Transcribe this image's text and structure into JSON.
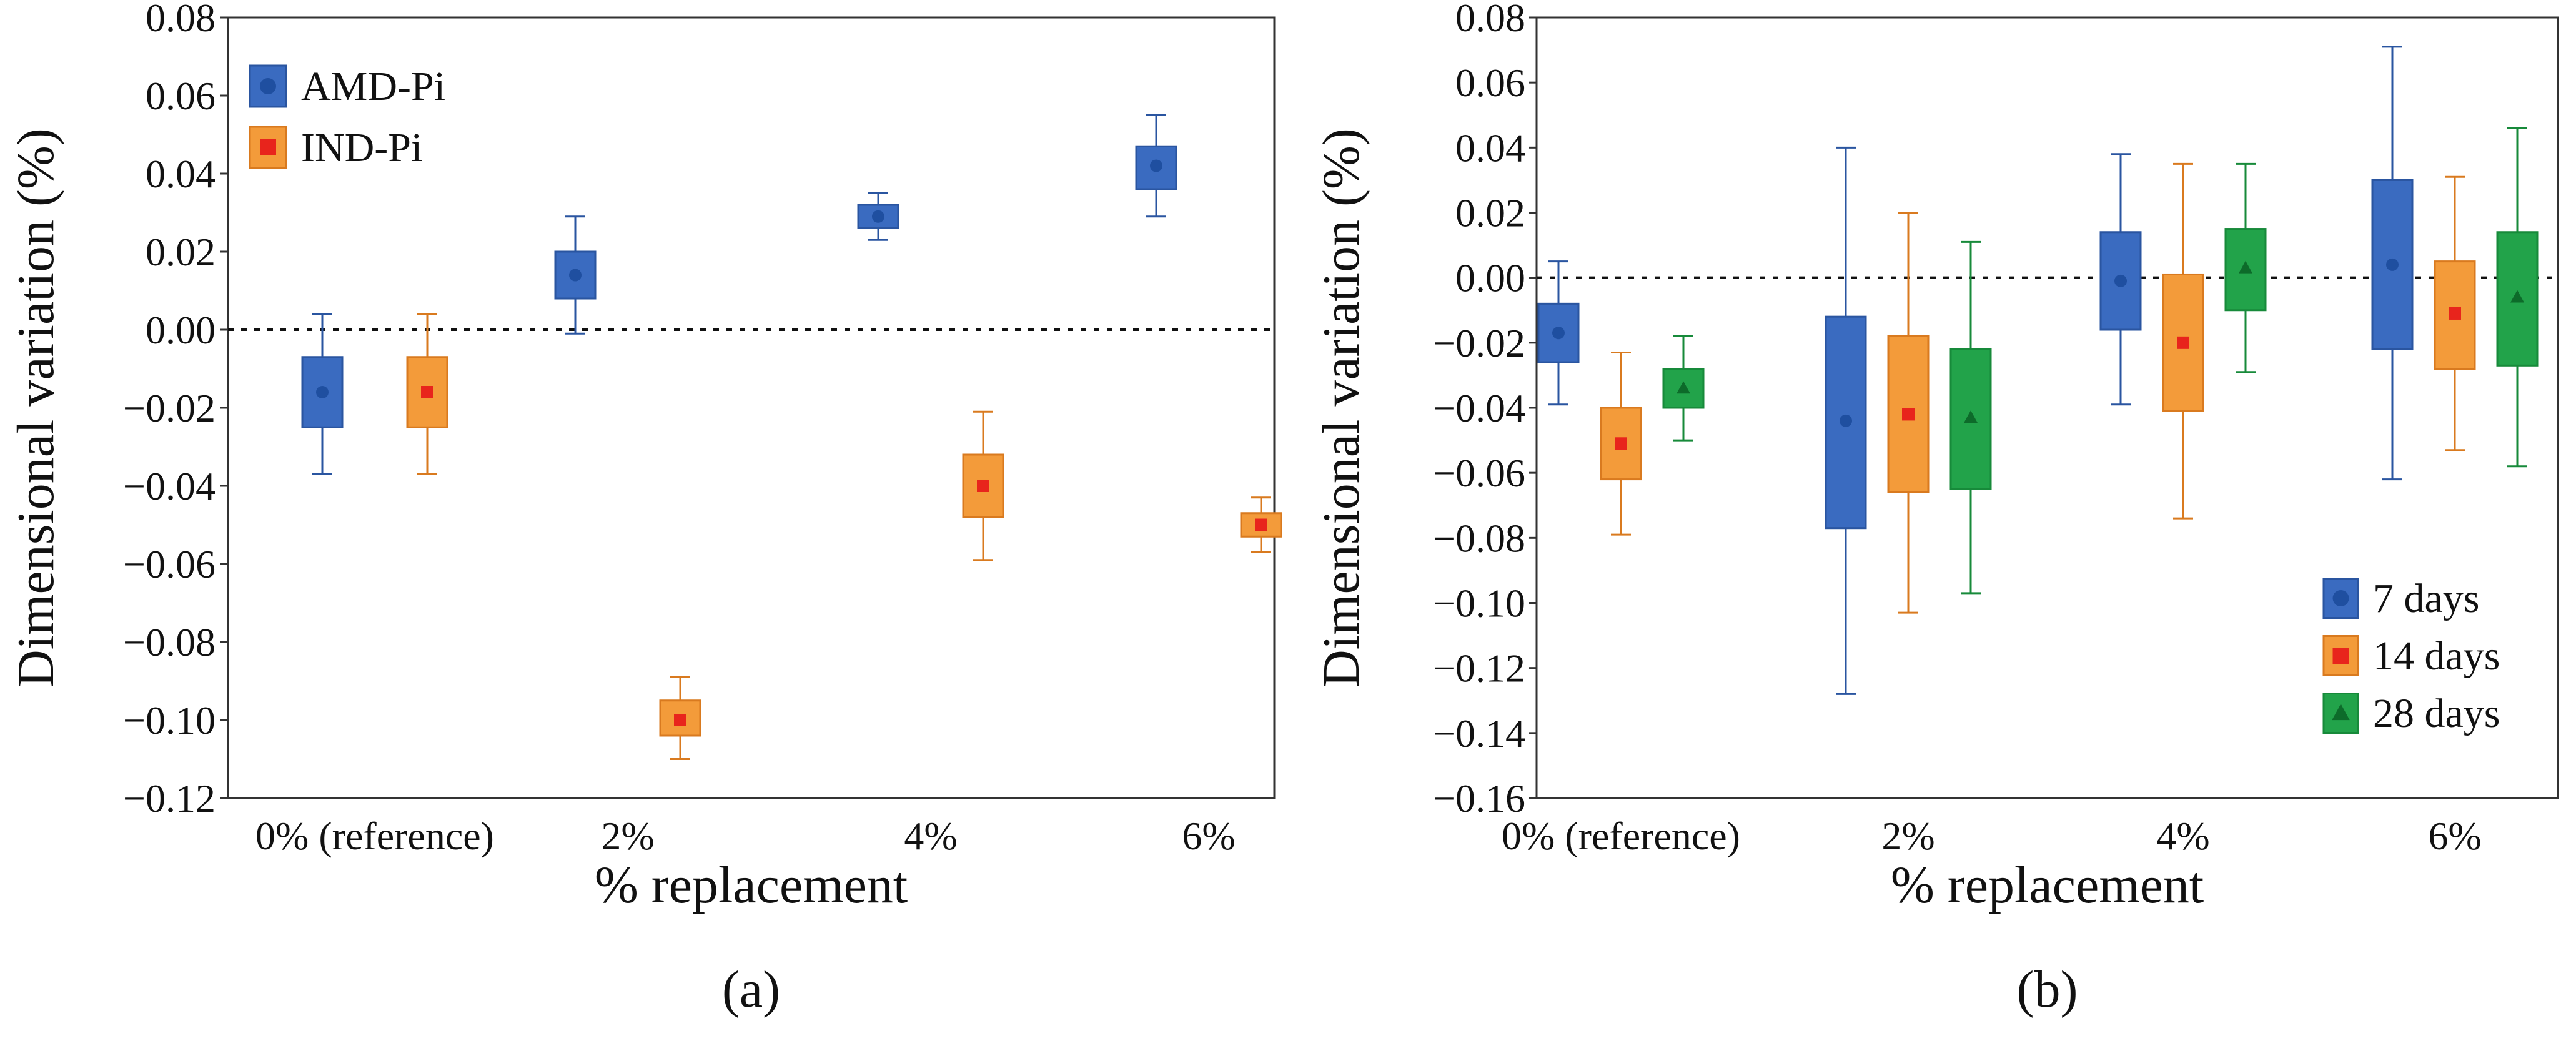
{
  "chart_data": [
    {
      "type": "box",
      "panel_label": "(a)",
      "xlabel": "% replacement",
      "ylabel": "Dimensional variation (%)",
      "categories": [
        "0% (reference)",
        "2%",
        "4%",
        "6%"
      ],
      "ylim": [
        -0.12,
        0.08
      ],
      "yticks": [
        "0.08",
        "0.06",
        "0.04",
        "0.02",
        "0.00",
        "−0.02",
        "−0.04",
        "−0.06",
        "−0.08",
        "−0.10",
        "−0.12"
      ],
      "reference_line": 0.0,
      "legend": {
        "placement": "top-left",
        "entries": [
          "AMD-Pi",
          "IND-Pi"
        ]
      },
      "series": [
        {
          "name": "AMD-Pi",
          "color": "#3a6bc0",
          "edge": "#2a55a0",
          "marker": "circle",
          "marker_color": "#1f4fa0",
          "boxes": [
            {
              "category": "0% (reference)",
              "whisker_low": -0.037,
              "q1": -0.025,
              "median": -0.016,
              "q3": -0.007,
              "whisker_high": 0.004
            },
            {
              "category": "2%",
              "whisker_low": -0.001,
              "q1": 0.008,
              "median": 0.014,
              "q3": 0.02,
              "whisker_high": 0.029
            },
            {
              "category": "4%",
              "whisker_low": 0.023,
              "q1": 0.026,
              "median": 0.029,
              "q3": 0.032,
              "whisker_high": 0.035
            },
            {
              "category": "6%",
              "whisker_low": 0.029,
              "q1": 0.036,
              "median": 0.042,
              "q3": 0.047,
              "whisker_high": 0.055
            }
          ]
        },
        {
          "name": "IND-Pi",
          "color": "#f39b3a",
          "edge": "#d97a1f",
          "marker": "square",
          "marker_color": "#e8241c",
          "boxes": [
            {
              "category": "0% (reference)",
              "whisker_low": -0.037,
              "q1": -0.025,
              "median": -0.016,
              "q3": -0.007,
              "whisker_high": 0.004
            },
            {
              "category": "2%",
              "whisker_low": -0.11,
              "q1": -0.104,
              "median": -0.1,
              "q3": -0.095,
              "whisker_high": -0.089
            },
            {
              "category": "4%",
              "whisker_low": -0.059,
              "q1": -0.048,
              "median": -0.04,
              "q3": -0.032,
              "whisker_high": -0.021
            },
            {
              "category": "6%",
              "whisker_low": -0.057,
              "q1": -0.053,
              "median": -0.05,
              "q3": -0.047,
              "whisker_high": -0.043
            }
          ]
        }
      ]
    },
    {
      "type": "box",
      "panel_label": "(b)",
      "xlabel": "% replacement",
      "ylabel": "Dimensional variation (%)",
      "categories": [
        "0% (reference)",
        "2%",
        "4%",
        "6%"
      ],
      "ylim": [
        -0.16,
        0.08
      ],
      "yticks": [
        "0.08",
        "0.06",
        "0.04",
        "0.02",
        "0.00",
        "−0.02",
        "−0.04",
        "−0.06",
        "−0.08",
        "−0.10",
        "−0.12",
        "−0.14",
        "−0.16"
      ],
      "reference_line": 0.0,
      "legend": {
        "placement": "bottom-right",
        "entries": [
          "7 days",
          "14 days",
          "28 days"
        ]
      },
      "series": [
        {
          "name": "7 days",
          "color": "#3a6bc0",
          "edge": "#2a55a0",
          "marker": "circle",
          "marker_color": "#1f4fa0",
          "boxes": [
            {
              "category": "0% (reference)",
              "whisker_low": -0.039,
              "q1": -0.026,
              "median": -0.017,
              "q3": -0.008,
              "whisker_high": 0.005
            },
            {
              "category": "2%",
              "whisker_low": -0.128,
              "q1": -0.077,
              "median": -0.044,
              "q3": -0.012,
              "whisker_high": 0.04
            },
            {
              "category": "4%",
              "whisker_low": -0.039,
              "q1": -0.016,
              "median": -0.001,
              "q3": 0.014,
              "whisker_high": 0.038
            },
            {
              "category": "6%",
              "whisker_low": -0.062,
              "q1": -0.022,
              "median": 0.004,
              "q3": 0.03,
              "whisker_high": 0.071
            }
          ]
        },
        {
          "name": "14 days",
          "color": "#f39b3a",
          "edge": "#d97a1f",
          "marker": "square",
          "marker_color": "#e8241c",
          "boxes": [
            {
              "category": "0% (reference)",
              "whisker_low": -0.079,
              "q1": -0.062,
              "median": -0.051,
              "q3": -0.04,
              "whisker_high": -0.023
            },
            {
              "category": "2%",
              "whisker_low": -0.103,
              "q1": -0.066,
              "median": -0.042,
              "q3": -0.018,
              "whisker_high": 0.02
            },
            {
              "category": "4%",
              "whisker_low": -0.074,
              "q1": -0.041,
              "median": -0.02,
              "q3": 0.001,
              "whisker_high": 0.035
            },
            {
              "category": "6%",
              "whisker_low": -0.053,
              "q1": -0.028,
              "median": -0.011,
              "q3": 0.005,
              "whisker_high": 0.031
            }
          ]
        },
        {
          "name": "28 days",
          "color": "#22a34a",
          "edge": "#178a3a",
          "marker": "triangle",
          "marker_color": "#0d6b2a",
          "boxes": [
            {
              "category": "0% (reference)",
              "whisker_low": -0.05,
              "q1": -0.04,
              "median": -0.034,
              "q3": -0.028,
              "whisker_high": -0.018
            },
            {
              "category": "2%",
              "whisker_low": -0.097,
              "q1": -0.065,
              "median": -0.043,
              "q3": -0.022,
              "whisker_high": 0.011
            },
            {
              "category": "4%",
              "whisker_low": -0.029,
              "q1": -0.01,
              "median": 0.003,
              "q3": 0.015,
              "whisker_high": 0.035
            },
            {
              "category": "6%",
              "whisker_low": -0.058,
              "q1": -0.027,
              "median": -0.006,
              "q3": 0.014,
              "whisker_high": 0.046
            }
          ]
        }
      ]
    }
  ]
}
